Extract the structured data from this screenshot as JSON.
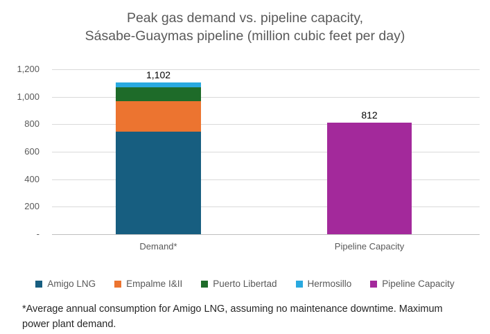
{
  "title": {
    "line1": "Peak gas demand vs. pipeline capacity,",
    "line2": "Sásabe-Guaymas pipeline (million cubic feet per day)"
  },
  "chart_data": {
    "type": "bar",
    "stacked": true,
    "title": "Peak gas demand vs. pipeline capacity, Sásabe-Guaymas pipeline (million cubic feet per day)",
    "categories": [
      "Demand*",
      "Pipeline Capacity"
    ],
    "series": [
      {
        "name": "Amigo LNG",
        "color": "#175e80",
        "values": [
          745,
          0
        ]
      },
      {
        "name": "Empalme I&II",
        "color": "#ec7430",
        "values": [
          225,
          0
        ]
      },
      {
        "name": "Puerto Libertad",
        "color": "#1e6b29",
        "values": [
          100,
          0
        ]
      },
      {
        "name": "Hermosillo",
        "color": "#29a9e0",
        "values": [
          32,
          0
        ]
      },
      {
        "name": "Pipeline Capacity",
        "color": "#a3299b",
        "values": [
          0,
          812
        ]
      }
    ],
    "bar_total_labels": [
      "1,102",
      "812"
    ],
    "bar_totals": [
      1102,
      812
    ],
    "xlabel": "",
    "ylabel": "",
    "ylim": [
      0,
      1200
    ],
    "ytick_step": 200,
    "ytick_labels": [
      "-",
      "200",
      "400",
      "600",
      "800",
      "1,000",
      "1,200"
    ],
    "grid": true,
    "legend_position": "bottom"
  },
  "footnote": "*Average annual consumption for Amigo LNG, assuming no maintenance downtime. Maximum power plant demand."
}
